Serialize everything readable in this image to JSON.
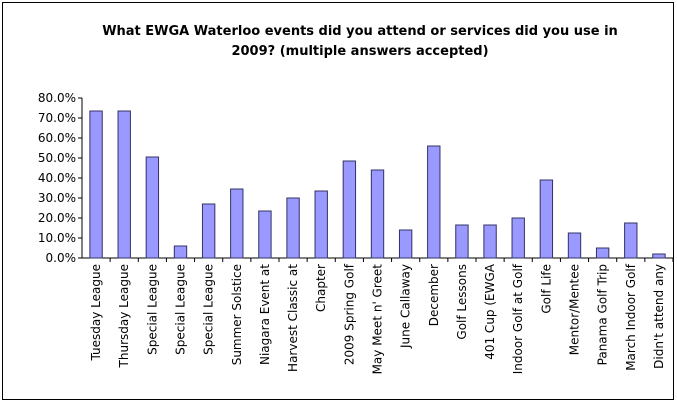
{
  "chart_data": {
    "type": "bar",
    "title": "What EWGA Waterloo events did you attend or services did you use in 2009? (multiple answers accepted)",
    "categories": [
      "Tuesday League",
      "Thursday League",
      "Special League",
      "Special League",
      "Special League",
      "Summer Solstice",
      "Niagara Event at",
      "Harvest Classic at",
      "Chapter",
      "2009 Spring Golf",
      "May Meet n' Greet",
      "June Callaway",
      "December",
      "Golf Lessons",
      "401 Cup (EWGA",
      "Indoor Golf at Golf",
      "Golf Life",
      "Mentor/Mentee",
      "Panama Golf Trip",
      "March Indoor Golf",
      "Didn't attend any"
    ],
    "values": [
      73.5,
      73.5,
      50.5,
      6,
      27,
      34.5,
      23.5,
      30,
      33.5,
      48.5,
      44,
      14,
      56,
      16.5,
      16.5,
      20,
      39,
      12.5,
      5,
      17.5,
      2
    ],
    "color": "#9999ff",
    "ylim": [
      0,
      80
    ],
    "yticks": [
      {
        "value": 0,
        "label": "0.0%"
      },
      {
        "value": 10,
        "label": "10.0%"
      },
      {
        "value": 20,
        "label": "20.0%"
      },
      {
        "value": 30,
        "label": "30.0%"
      },
      {
        "value": 40,
        "label": "40.0%"
      },
      {
        "value": 50,
        "label": "50.0%"
      },
      {
        "value": 60,
        "label": "60.0%"
      },
      {
        "value": 70,
        "label": "70.0%"
      },
      {
        "value": 80,
        "label": "80.0%"
      }
    ],
    "grid": false
  }
}
